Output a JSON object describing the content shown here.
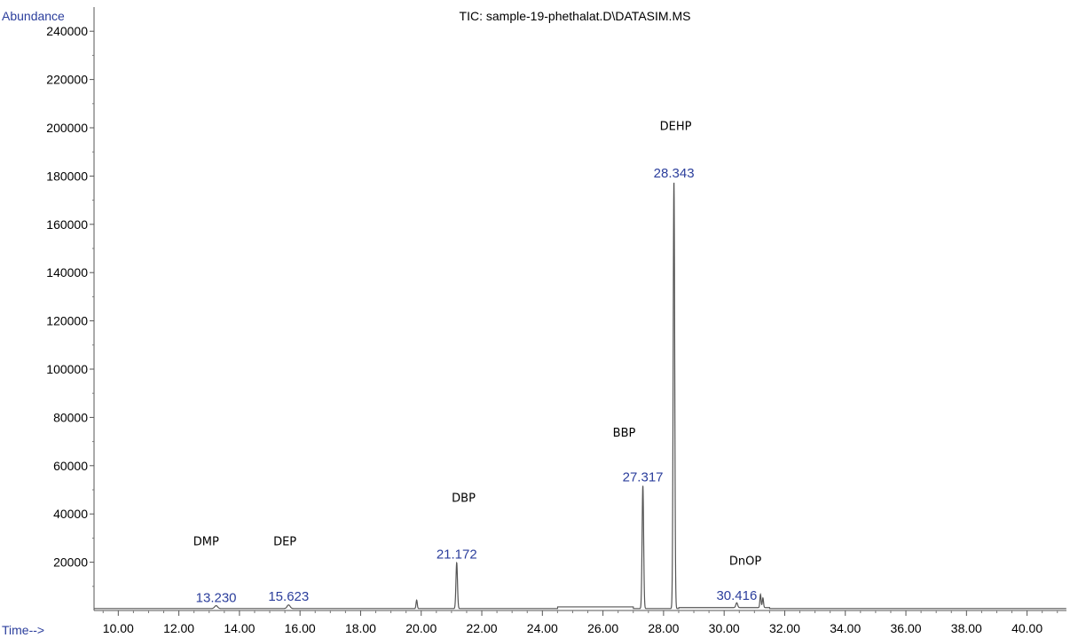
{
  "chart_data": {
    "type": "line",
    "title": "TIC: sample-19-phethalat.D\\DATASIM.MS",
    "ylabel": "Abundance",
    "xlabel": "Time-->",
    "xlim": [
      9.2,
      41.3
    ],
    "ylim": [
      0,
      250000
    ],
    "x_ticks": [
      "10.00",
      "12.00",
      "14.00",
      "16.00",
      "18.00",
      "20.00",
      "22.00",
      "24.00",
      "26.00",
      "28.00",
      "30.00",
      "32.00",
      "34.00",
      "36.00",
      "38.00",
      "40.00"
    ],
    "y_ticks": [
      "20000",
      "40000",
      "60000",
      "80000",
      "100000",
      "120000",
      "140000",
      "160000",
      "180000",
      "200000",
      "220000",
      "240000"
    ],
    "baseline": 800,
    "peaks": [
      {
        "rt": 13.23,
        "height": 1200,
        "width": 0.05
      },
      {
        "rt": 15.623,
        "height": 1500,
        "width": 0.05
      },
      {
        "rt": 19.85,
        "height": 3500,
        "width": 0.02
      },
      {
        "rt": 21.172,
        "height": 19000,
        "width": 0.025
      },
      {
        "rt": 27.317,
        "height": 51000,
        "width": 0.025
      },
      {
        "rt": 28.343,
        "height": 177000,
        "width": 0.025
      },
      {
        "rt": 30.416,
        "height": 2000,
        "width": 0.03
      },
      {
        "rt": 31.2,
        "height": 5500,
        "width": 0.02
      },
      {
        "rt": 31.28,
        "height": 4000,
        "width": 0.02
      }
    ],
    "peak_labels": [
      {
        "text": "13.230",
        "x": 13.23,
        "y": 3500
      },
      {
        "text": "15.623",
        "x": 15.623,
        "y": 4000
      },
      {
        "text": "21.172",
        "x": 21.172,
        "y": 21500
      },
      {
        "text": "27.317",
        "x": 27.317,
        "y": 53500
      },
      {
        "text": "28.343",
        "x": 28.343,
        "y": 179500
      },
      {
        "text": "30.416",
        "x": 30.416,
        "y": 4500
      }
    ],
    "compound_labels": [
      {
        "text": "DMP",
        "x": 12.9,
        "y": 27000
      },
      {
        "text": "DEP",
        "x": 15.5,
        "y": 27000
      },
      {
        "text": "DBP",
        "x": 21.4,
        "y": 45000
      },
      {
        "text": "BBP",
        "x": 26.7,
        "y": 72000
      },
      {
        "text": "DEHP",
        "x": 28.4,
        "y": 199000
      },
      {
        "text": "DnOP",
        "x": 30.7,
        "y": 19000
      }
    ],
    "line_color": "#555555",
    "label_color": "#2b3e9c"
  }
}
